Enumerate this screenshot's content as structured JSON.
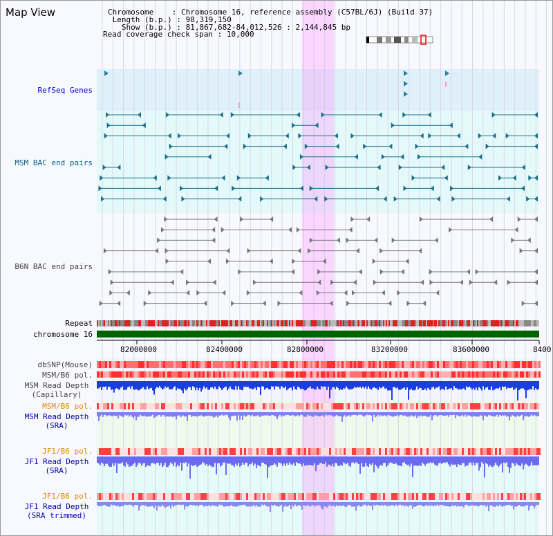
{
  "title": "Map View",
  "info": {
    "chromosome_key": "Chromosome    ",
    "chromosome_value": "Chromosome 16, reference assembly (C57BL/6J) (Build 37)",
    "length_key": "Length (b.p.)",
    "length_value": "98,319,150",
    "show_key": "Show (b.p.)",
    "show_value": "81,867,682-84,012,526 : 2,144,845 bp",
    "coverage_key": "Read coverage check span",
    "coverage_value": "10,000"
  },
  "tracks": {
    "refseq": "RefSeq Genes",
    "msm_bac": "MSM BAC end pairs",
    "b6n_bac": "B6N BAC end pairs",
    "repeat": "Repeat",
    "chromosome": "chromosome 16",
    "dbsnp": "dbSNP(Mouse)",
    "msm_b6_pol": "MSM/B6 pol.",
    "msm_read_depth_cap": "MSM Read Depth",
    "capillary": "(Capillary)",
    "msm_b6_pol_2": "MSM/B6 pol.",
    "msm_read_depth_sra": "MSM Read Depth",
    "sra": "(SRA)",
    "jf1_b6_pol": "JF1/B6 pol.",
    "jf1_read_depth": "JF1 Read Depth",
    "sra_2": "(SRA)",
    "jf1_b6_pol_2": "JF1/B6 pol.",
    "jf1_read_depth_2": "JF1 Read Depth",
    "sra_trimmed": "(SRA trimmed)"
  },
  "ruler": {
    "ticks": [
      "82000000",
      "82400000",
      "82800000",
      "83200000",
      "83600000",
      "8400"
    ]
  },
  "colors": {
    "refseq_label": "#0000cc",
    "msm_label": "#006688",
    "b6n_label": "#444444",
    "orange_label": "#dd8800",
    "highlight": "#ff80ff",
    "chromosome_bar": "#006400"
  }
}
